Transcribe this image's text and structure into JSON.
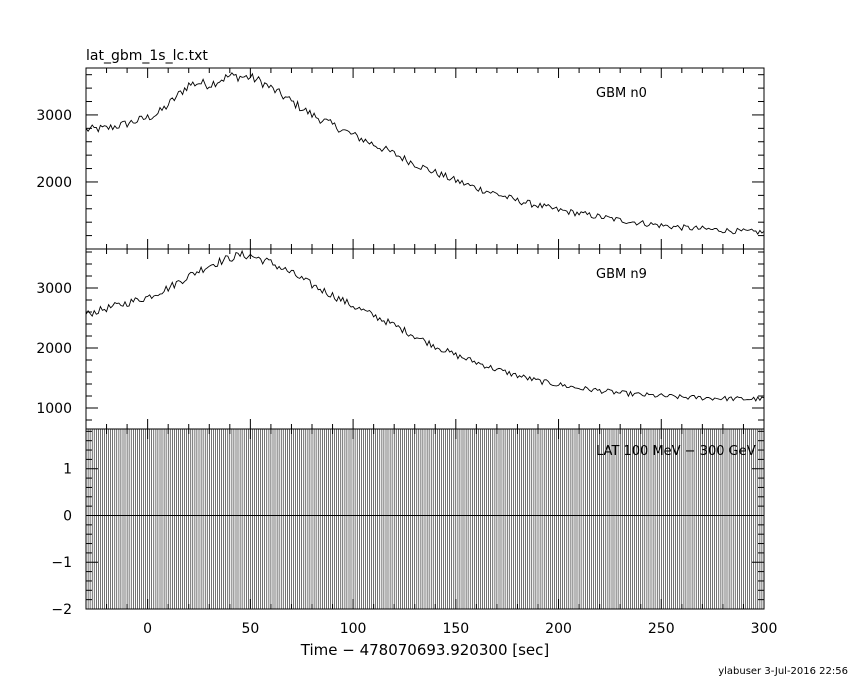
{
  "chart_data": {
    "type": "line",
    "file_title": "lat_gbm_1s_lc.txt",
    "xlabel": "Time − 478070693.920300 [sec]",
    "xlim": [
      -30,
      300
    ],
    "xticks": [
      0,
      50,
      100,
      150,
      200,
      250,
      300
    ],
    "footer": "ylabuser  3-Jul-2016 22:56",
    "panels": [
      {
        "label": "GBM n0",
        "ylim": [
          1000,
          3700
        ],
        "yticks": [
          2000,
          3000
        ],
        "points": [
          [
            -30,
            2780
          ],
          [
            -20,
            2800
          ],
          [
            -10,
            2870
          ],
          [
            0,
            2960
          ],
          [
            5,
            3020
          ],
          [
            10,
            3150
          ],
          [
            15,
            3300
          ],
          [
            20,
            3450
          ],
          [
            25,
            3480
          ],
          [
            30,
            3450
          ],
          [
            35,
            3520
          ],
          [
            40,
            3580
          ],
          [
            45,
            3570
          ],
          [
            50,
            3560
          ],
          [
            55,
            3500
          ],
          [
            60,
            3400
          ],
          [
            65,
            3300
          ],
          [
            70,
            3200
          ],
          [
            75,
            3100
          ],
          [
            80,
            3000
          ],
          [
            90,
            2850
          ],
          [
            100,
            2700
          ],
          [
            110,
            2560
          ],
          [
            120,
            2420
          ],
          [
            130,
            2270
          ],
          [
            140,
            2140
          ],
          [
            150,
            2020
          ],
          [
            160,
            1910
          ],
          [
            170,
            1820
          ],
          [
            180,
            1720
          ],
          [
            190,
            1650
          ],
          [
            200,
            1580
          ],
          [
            210,
            1530
          ],
          [
            220,
            1480
          ],
          [
            230,
            1430
          ],
          [
            240,
            1390
          ],
          [
            250,
            1350
          ],
          [
            260,
            1320
          ],
          [
            270,
            1300
          ],
          [
            280,
            1280
          ],
          [
            290,
            1260
          ],
          [
            300,
            1250
          ]
        ]
      },
      {
        "label": "GBM n9",
        "ylim": [
          650,
          3650
        ],
        "yticks": [
          1000,
          2000,
          3000
        ],
        "points": [
          [
            -30,
            2560
          ],
          [
            -20,
            2660
          ],
          [
            -10,
            2750
          ],
          [
            0,
            2850
          ],
          [
            10,
            3000
          ],
          [
            20,
            3200
          ],
          [
            30,
            3380
          ],
          [
            40,
            3500
          ],
          [
            45,
            3550
          ],
          [
            50,
            3540
          ],
          [
            60,
            3420
          ],
          [
            70,
            3250
          ],
          [
            80,
            3050
          ],
          [
            90,
            2880
          ],
          [
            100,
            2700
          ],
          [
            110,
            2540
          ],
          [
            120,
            2380
          ],
          [
            130,
            2200
          ],
          [
            140,
            2030
          ],
          [
            150,
            1880
          ],
          [
            160,
            1760
          ],
          [
            170,
            1640
          ],
          [
            180,
            1540
          ],
          [
            190,
            1450
          ],
          [
            200,
            1390
          ],
          [
            210,
            1330
          ],
          [
            220,
            1290
          ],
          [
            230,
            1250
          ],
          [
            240,
            1220
          ],
          [
            250,
            1200
          ],
          [
            260,
            1180
          ],
          [
            270,
            1170
          ],
          [
            280,
            1160
          ],
          [
            290,
            1150
          ],
          [
            300,
            1150
          ]
        ]
      },
      {
        "label": "LAT 100 MeV − 300 GeV",
        "ylim": [
          -2,
          1.85
        ],
        "yticks": [
          -2,
          -1,
          0,
          1
        ],
        "bars": "zero"
      }
    ]
  }
}
